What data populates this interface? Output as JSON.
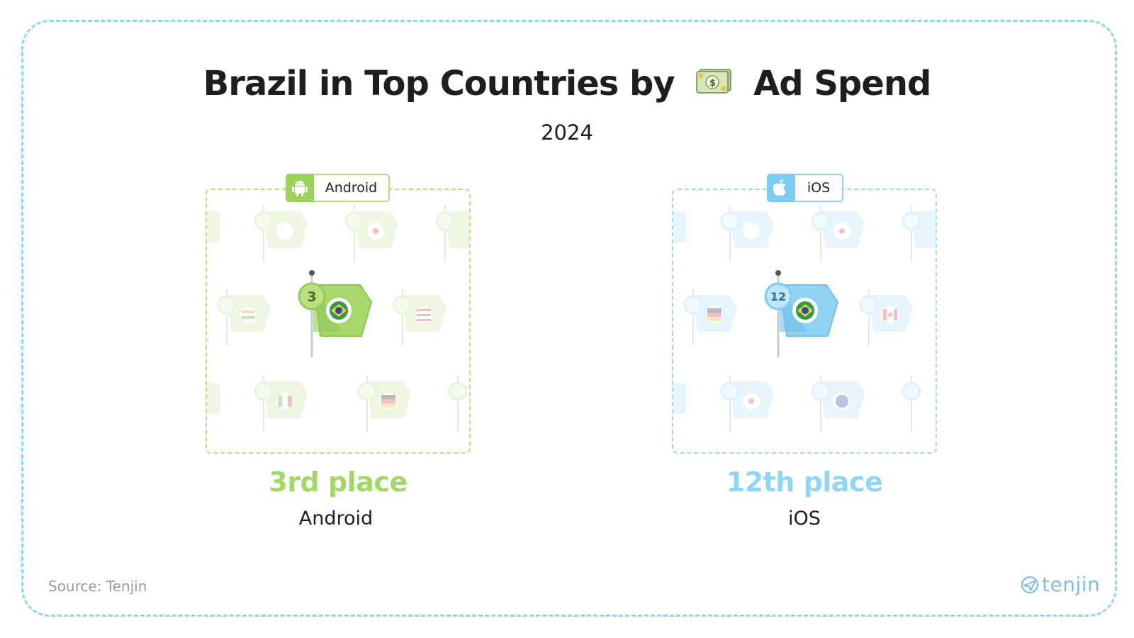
{
  "title": {
    "before": "Brazil in Top Countries by",
    "icon": "money-bill-icon",
    "after": "Ad Spend"
  },
  "subtitle": "2024",
  "panels": [
    {
      "platform_tag": "Android",
      "tag_icon": "android-icon",
      "accent": "#9bd35a",
      "rank_badge": "3",
      "rank": 3,
      "place_label": "3rd place",
      "platform_label": "Android"
    },
    {
      "platform_tag": "iOS",
      "tag_icon": "apple-icon",
      "accent": "#7ccdf1",
      "rank_badge": "12",
      "rank": 12,
      "place_label": "12th place",
      "platform_label": "iOS"
    }
  ],
  "source": "Source: Tenjin",
  "brand": "tenjin",
  "colors": {
    "android_green": "#9bd35a",
    "ios_blue": "#7ccdf1",
    "frame": "#8fd6f2"
  }
}
